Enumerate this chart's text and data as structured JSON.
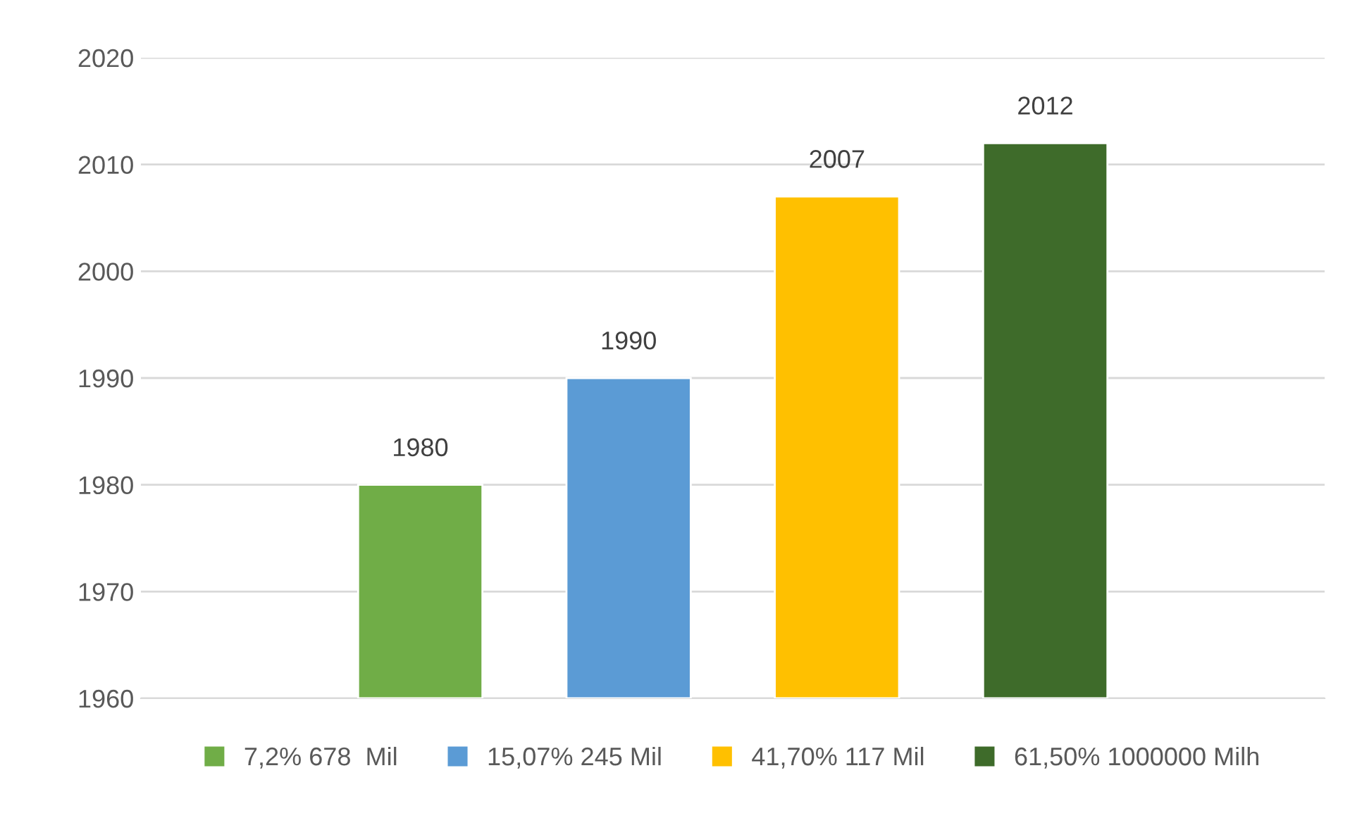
{
  "chart_data": {
    "type": "bar",
    "categories": [
      null
    ],
    "series": [
      {
        "name": "7,2% 678  Mil",
        "color": "#70ad47",
        "values": [
          1980
        ]
      },
      {
        "name": "15,07% 245 Mil",
        "color": "#5b9bd5",
        "values": [
          1990
        ]
      },
      {
        "name": "41,70% 117 Mil",
        "color": "#ffc000",
        "values": [
          2007
        ]
      },
      {
        "name": "61,50% 1000000 Milh",
        "color": "#3e6b2a",
        "values": [
          2012
        ]
      }
    ],
    "ylim": [
      1960,
      2020
    ],
    "yticks": [
      1960,
      1970,
      1980,
      1990,
      2000,
      2010,
      2020
    ],
    "grid": "y",
    "legend": "bottom",
    "data_labels": true
  }
}
